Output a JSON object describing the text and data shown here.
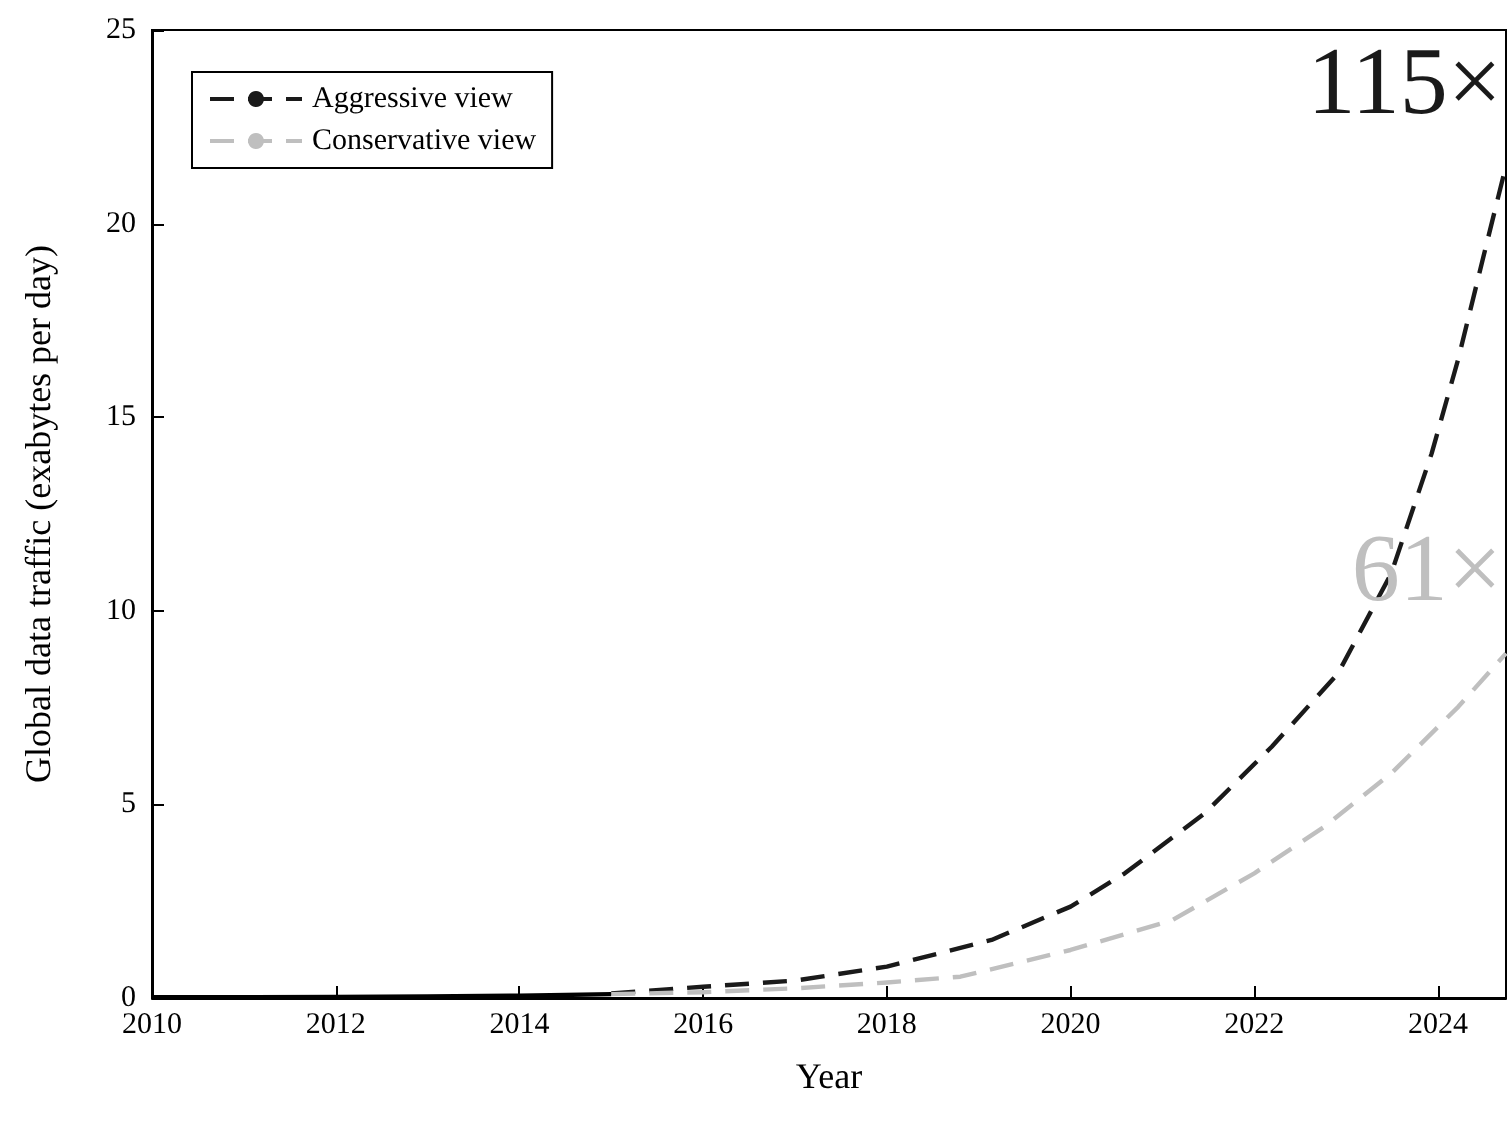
{
  "chart_data": {
    "type": "line",
    "xlabel": "Year",
    "ylabel": "Global data traffic (exabytes per day)",
    "xlim": [
      2010,
      2024.74
    ],
    "xticks": [
      2010,
      2012,
      2014,
      2016,
      2018,
      2020,
      2022,
      2024
    ],
    "ylim": [
      0,
      25
    ],
    "yticks": [
      0,
      5,
      10,
      15,
      20,
      25
    ],
    "grid": false,
    "legend": "top left",
    "marker": "none",
    "series": [
      {
        "color": "#000000",
        "line_style": "solid",
        "x": [
          2010,
          2011,
          2012,
          2013,
          2014,
          2015
        ],
        "values": [
          0.02,
          0.02,
          0.03,
          0.04,
          0.06,
          0.1
        ]
      },
      {
        "name": "Aggressive view",
        "color": "#1a1a1a",
        "line_style": "dashed",
        "x": [
          2015,
          2016,
          2017,
          2018,
          2019.14,
          2020,
          2020.59,
          2021.46,
          2022.19,
          2022.91,
          2023.49,
          2023.93,
          2024.22,
          2024.5,
          2024.74
        ],
        "values": [
          0.12,
          0.29,
          0.45,
          0.81,
          1.5,
          2.36,
          3.22,
          4.77,
          6.49,
          8.38,
          10.96,
          14.06,
          16.5,
          19.2,
          21.5
        ]
      },
      {
        "name": "Conservative view",
        "color": "#bfbfbf",
        "line_style": "dashed",
        "x": [
          2015,
          2016,
          2017,
          2018,
          2018.8,
          2020,
          2021.1,
          2022,
          2022.76,
          2023.49,
          2024.22,
          2024.74
        ],
        "values": [
          0.1,
          0.15,
          0.25,
          0.4,
          0.55,
          1.24,
          2.0,
          3.22,
          4.42,
          5.8,
          7.52,
          8.9
        ]
      }
    ],
    "annotations": [
      {
        "text": "115×",
        "x": 2024.74,
        "y": 21.5
      },
      {
        "text": "61×",
        "x": 2024.74,
        "y": 8.9
      }
    ]
  }
}
